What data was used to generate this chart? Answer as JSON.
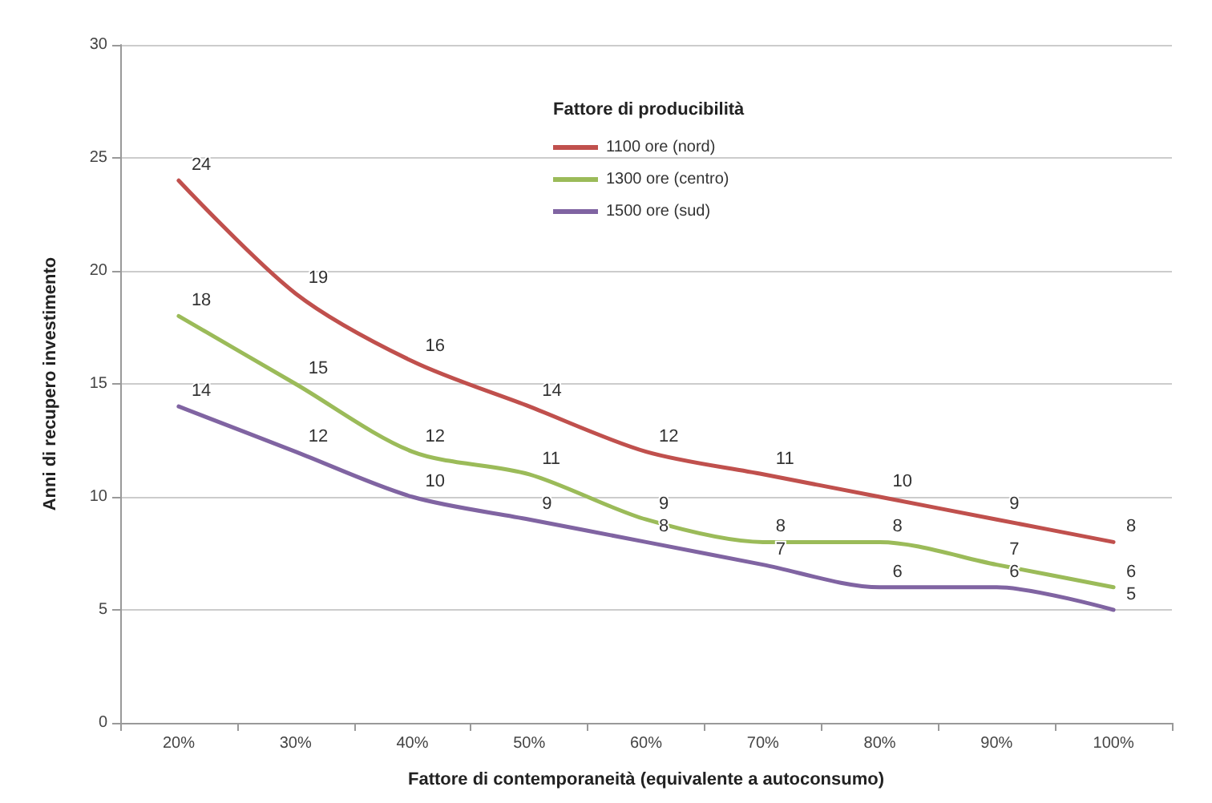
{
  "chart_data": {
    "type": "line",
    "xlabel": "Fattore di contemporaneità (equivalente a autoconsumo)",
    "ylabel": "Anni di recupero investimento",
    "legend_title": "Fattore di producibilità",
    "categories": [
      "20%",
      "30%",
      "40%",
      "50%",
      "60%",
      "70%",
      "80%",
      "90%",
      "100%"
    ],
    "series": [
      {
        "name": "1100 ore (nord)",
        "color": "#c0504d",
        "values": [
          24,
          19,
          16,
          14,
          12,
          11,
          10,
          9,
          8
        ]
      },
      {
        "name": "1300 ore (centro)",
        "color": "#9bbb59",
        "values": [
          18,
          15,
          12,
          11,
          9,
          8,
          8,
          7,
          6
        ]
      },
      {
        "name": "1500 ore (sud)",
        "color": "#8064a2",
        "values": [
          14,
          12,
          10,
          9,
          8,
          7,
          6,
          6,
          5
        ]
      }
    ],
    "ylim": [
      0,
      30
    ],
    "yticks": [
      0,
      5,
      10,
      15,
      20,
      25,
      30
    ],
    "grid": "y",
    "legend": "top",
    "data_labels": true,
    "marker": "none",
    "line_style": "solid"
  }
}
